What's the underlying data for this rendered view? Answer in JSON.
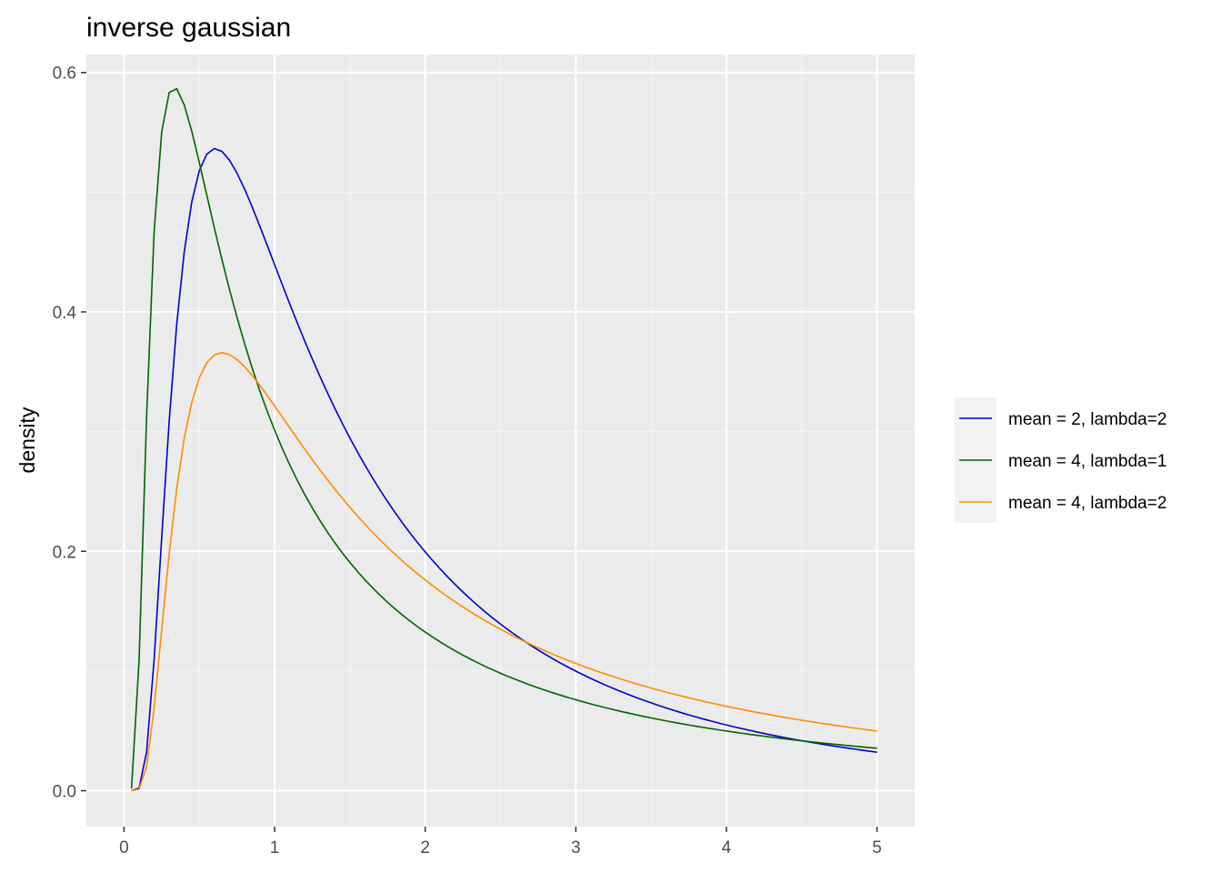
{
  "chart_data": {
    "type": "line",
    "title": "inverse gaussian",
    "xlabel": "",
    "ylabel": "density",
    "xlim": [
      -0.25,
      5.25
    ],
    "ylim": [
      -0.03,
      0.615
    ],
    "x_ticks": [
      0,
      1,
      2,
      3,
      4,
      5
    ],
    "y_ticks": [
      0.0,
      0.2,
      0.4,
      0.6
    ],
    "x_tick_labels": [
      "0",
      "1",
      "2",
      "3",
      "4",
      "5"
    ],
    "y_tick_labels": [
      "0.0",
      "0.2",
      "0.4",
      "0.6"
    ],
    "grid": true,
    "legend_position": "right",
    "series": [
      {
        "name": "mean = 2, lambda=2",
        "color": "#0000cd",
        "mean": 2,
        "lambda": 2
      },
      {
        "name": "mean = 4, lambda=1",
        "color": "#006400",
        "mean": 4,
        "lambda": 1
      },
      {
        "name": "mean = 4, lambda=2",
        "color": "#ff8c00",
        "mean": 4,
        "lambda": 2
      }
    ]
  }
}
